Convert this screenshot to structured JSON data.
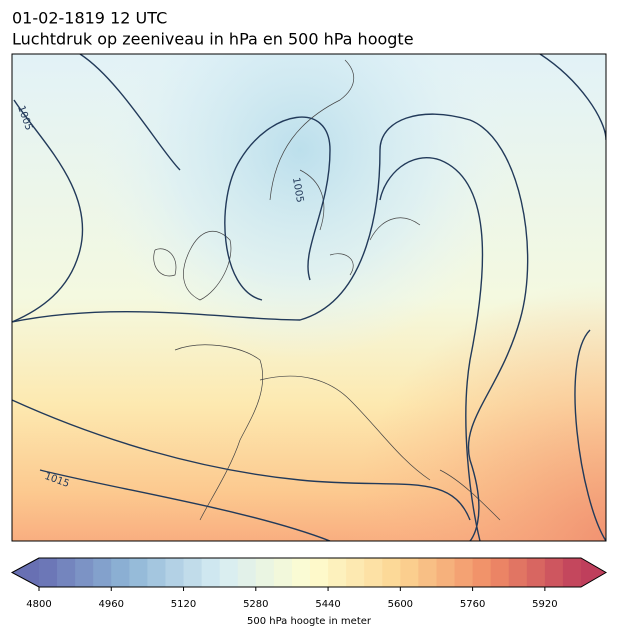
{
  "title": "01-02-1819 12 UTC",
  "subtitle": "Luchtdruk op zeeniveau in hPa en 500 hPa hoogte",
  "contour_labels": [
    "1005",
    "1005",
    "1015"
  ],
  "colorbar": {
    "label": "500 hPa hoogte in meter",
    "clim": [
      4800,
      6000
    ],
    "step": 40,
    "ticks": [
      4800,
      4960,
      5120,
      5280,
      5440,
      5600,
      5760,
      5920
    ],
    "colormap": [
      "#6870b3",
      "#8fb6d6",
      "#d6ecf3",
      "#fefdd0",
      "#fcd592",
      "#f08c66",
      "#bf3f5c"
    ]
  }
}
